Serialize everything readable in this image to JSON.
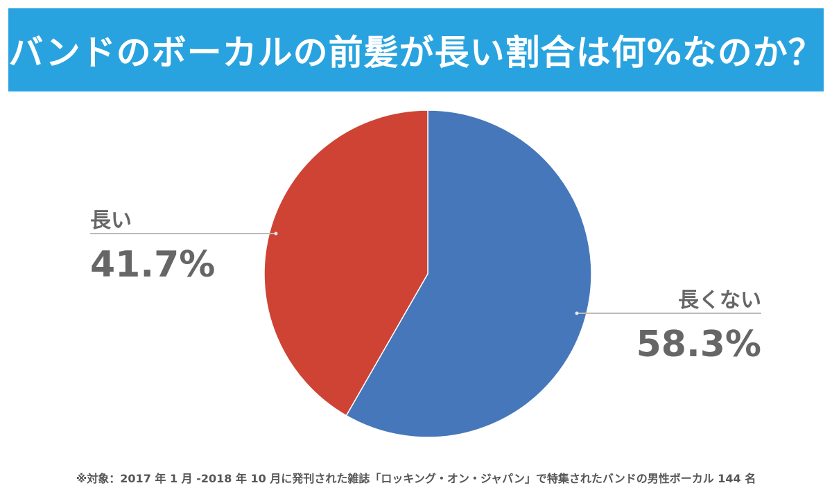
{
  "title": "バンドのボーカルの前髪が長い割合は何%なのか？",
  "footnote": "※対象：2017 年 1 月 -2018 年 10 月に発刊された雑誌「ロッキング・オン・ジャパン」で特集されたバンドの男性ボーカル 144 名",
  "chart_data": {
    "type": "pie",
    "title": "バンドのボーカルの前髪が長い割合は何%なのか？",
    "slices": [
      {
        "label": "長くない",
        "value": 58.3,
        "value_label": "58.3%",
        "color": "#4677bb"
      },
      {
        "label": "長い",
        "value": 41.7,
        "value_label": "41.7%",
        "color": "#cf4334"
      }
    ],
    "start_angle_deg": 0,
    "direction": "clockwise",
    "label_color": "#666666",
    "leader_line_color": "#bbbbbb"
  }
}
